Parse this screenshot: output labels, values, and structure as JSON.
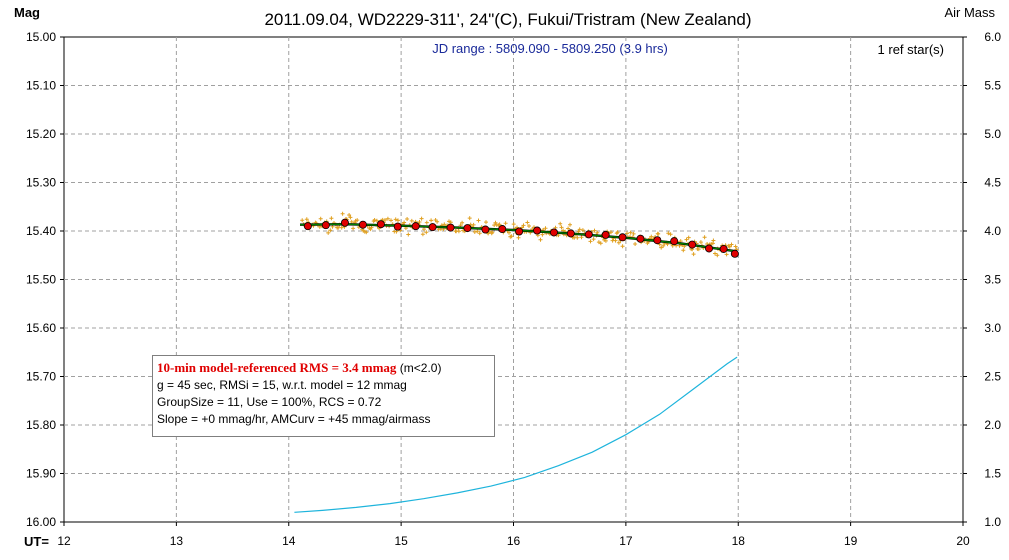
{
  "header": {
    "title": "2011.09.04, WD2229-311', 24\"(C), Fukui/Tristram (New Zealand)",
    "left_axis_label": "Mag",
    "right_axis_label": "Air Mass",
    "jd_range": "JD range : 5809.090 - 5809.250 (3.9 hrs)",
    "ref_stars": "1 ref star(s)",
    "x_axis_label": "UT="
  },
  "info_box": {
    "line1_red": "10-min model-referenced RMS = 3.4 mmag",
    "line1_suffix": " (m<2.0)",
    "line2": "g = 45 sec, RMSi = 15, w.r.t. model = 12 mmag",
    "line3": "GroupSize = 11, Use = 100%, RCS = 0.72",
    "line4": "Slope = +0 mmag/hr, AMCurv = +45 mmag/airmass"
  },
  "colors": {
    "raw_points": "#e0a020",
    "binned_points": "#e00000",
    "model_line": "#008000",
    "airmass_line": "#1eb4dc",
    "grid": "#a0a0a0"
  },
  "chart_data": {
    "type": "scatter",
    "xlabel": "UT=",
    "ylabel": "Mag",
    "y2label": "Air Mass",
    "xlim": [
      12,
      20
    ],
    "ylim": [
      16.0,
      15.0
    ],
    "y2lim": [
      1.0,
      6.0
    ],
    "x_ticks": [
      "12",
      "13",
      "14",
      "15",
      "16",
      "17",
      "18",
      "19",
      "20"
    ],
    "y_ticks": [
      "15.00",
      "15.10",
      "15.20",
      "15.30",
      "15.40",
      "15.50",
      "15.60",
      "15.70",
      "15.80",
      "15.90",
      "16.00"
    ],
    "y2_ticks": [
      "6.0",
      "5.5",
      "5.0",
      "4.5",
      "4.0",
      "3.5",
      "3.0",
      "2.5",
      "2.0",
      "1.5",
      "1.0"
    ],
    "grid": true,
    "series": [
      {
        "kind": "binned",
        "x": [
          14.17,
          14.33,
          14.5,
          14.66,
          14.82,
          14.97,
          15.13,
          15.28,
          15.44,
          15.59,
          15.75,
          15.9,
          16.05,
          16.21,
          16.36,
          16.51,
          16.67,
          16.82,
          16.97,
          17.13,
          17.28,
          17.43,
          17.59,
          17.74,
          17.87,
          17.97
        ],
        "y": [
          15.39,
          15.388,
          15.383,
          15.387,
          15.386,
          15.391,
          15.39,
          15.392,
          15.393,
          15.394,
          15.397,
          15.396,
          15.401,
          15.399,
          15.403,
          15.405,
          15.407,
          15.408,
          15.413,
          15.416,
          15.419,
          15.421,
          15.428,
          15.436,
          15.437,
          15.447
        ]
      },
      {
        "kind": "model",
        "x": [
          14.1,
          14.5,
          15.0,
          15.5,
          16.0,
          16.5,
          17.0,
          17.5,
          17.99
        ],
        "y": [
          15.387,
          15.386,
          15.389,
          15.393,
          15.398,
          15.405,
          15.414,
          15.426,
          15.442
        ]
      },
      {
        "kind": "airmass",
        "x": [
          14.05,
          14.3,
          14.6,
          14.9,
          15.2,
          15.5,
          15.8,
          16.1,
          16.4,
          16.7,
          17.0,
          17.3,
          17.6,
          17.9,
          17.99
        ],
        "y": [
          1.1,
          1.12,
          1.15,
          1.19,
          1.24,
          1.3,
          1.37,
          1.46,
          1.58,
          1.72,
          1.9,
          2.11,
          2.37,
          2.63,
          2.7
        ]
      }
    ]
  }
}
